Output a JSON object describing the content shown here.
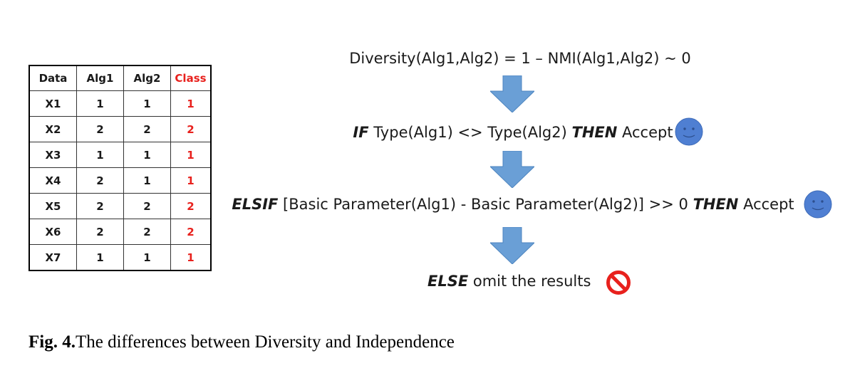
{
  "table": {
    "headers": [
      "Data",
      "Alg1",
      "Alg2",
      "Class"
    ],
    "rows": [
      [
        "X1",
        "1",
        "1",
        "1"
      ],
      [
        "X2",
        "2",
        "2",
        "2"
      ],
      [
        "X3",
        "1",
        "1",
        "1"
      ],
      [
        "X4",
        "2",
        "1",
        "1"
      ],
      [
        "X5",
        "2",
        "2",
        "2"
      ],
      [
        "X6",
        "2",
        "2",
        "2"
      ],
      [
        "X7",
        "1",
        "1",
        "1"
      ]
    ]
  },
  "flow": {
    "diversity": "Diversity(Alg1,Alg2) = 1 – NMI(Alg1,Alg2)  ~ 0",
    "if_kw": "IF",
    "if_cond": " Type(Alg1) <> Type(Alg2) ",
    "then_kw": "THEN",
    "accept": " Accept",
    "elsif_kw": "ELSIF",
    "elsif_cond": " [Basic Parameter(Alg1) - Basic Parameter(Alg2)] >> 0 ",
    "else_kw": "ELSE",
    "else_text": " omit the results"
  },
  "caption": {
    "label": "Fig. 4.",
    "text": "The differences between Diversity and Independence"
  },
  "colors": {
    "arrow": "#6a9fd6",
    "smiley": "#4f7fd2",
    "no_sign": "#e8211d",
    "class_text": "#e8211d"
  },
  "icons": [
    "down-arrow-icon",
    "smiley-icon",
    "no-entry-icon"
  ]
}
